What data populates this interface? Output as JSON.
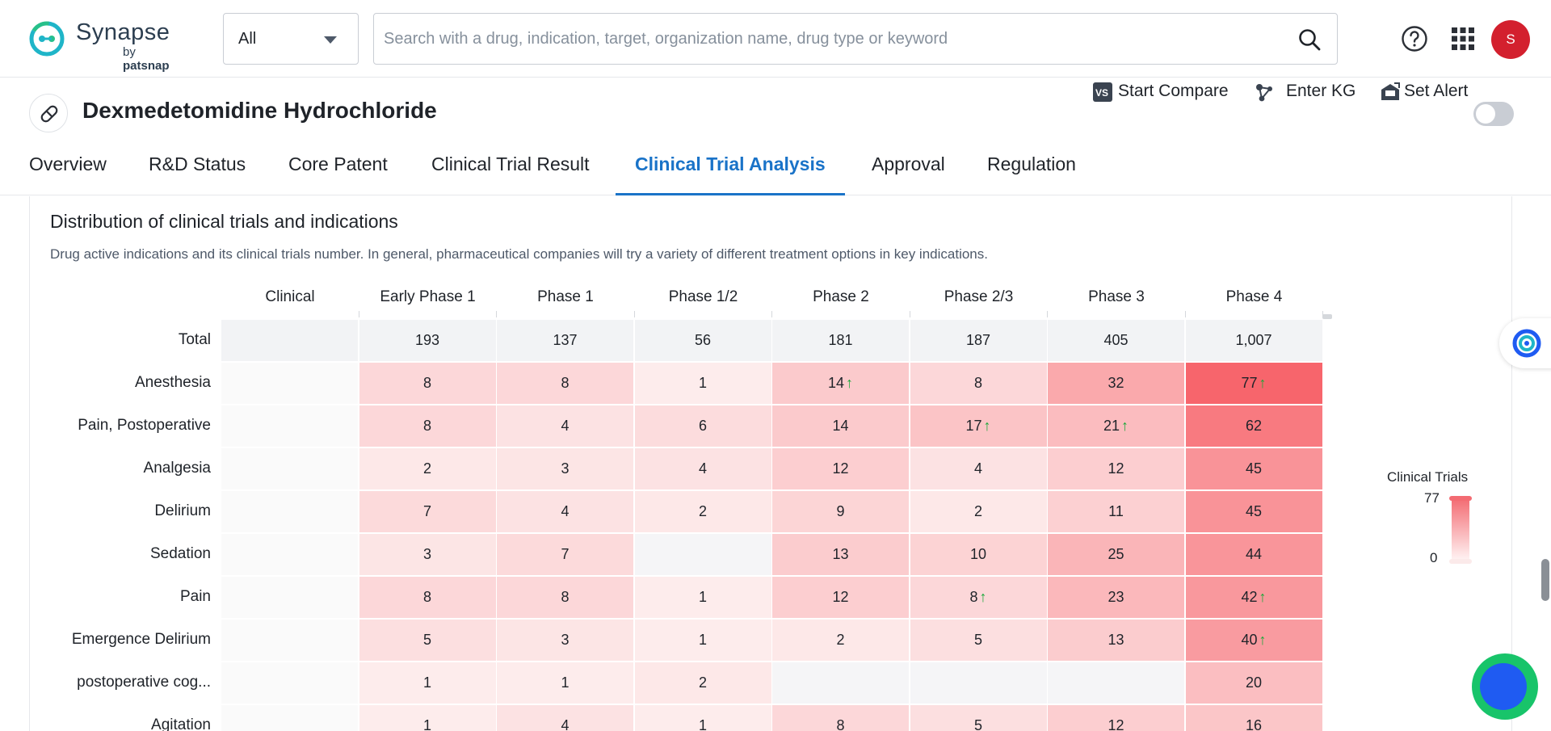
{
  "brand": {
    "name": "Synapse",
    "sub_prefix": "by ",
    "sub_name": "patsnap"
  },
  "search": {
    "scope": "All",
    "placeholder": "Search with a drug, indication, target, organization name, drug type or keyword"
  },
  "user": {
    "avatar_initial": "S"
  },
  "drug": {
    "title": "Dexmedetomidine Hydrochloride"
  },
  "actions": {
    "compare": "Start Compare",
    "kg": "Enter KG",
    "alert": "Set Alert",
    "alert_enabled": false
  },
  "tabs": [
    {
      "label": "Overview",
      "active": false
    },
    {
      "label": "R&D Status",
      "active": false
    },
    {
      "label": "Core Patent",
      "active": false
    },
    {
      "label": "Clinical Trial Result",
      "active": false
    },
    {
      "label": "Clinical Trial Analysis",
      "active": true
    },
    {
      "label": "Approval",
      "active": false
    },
    {
      "label": "Regulation",
      "active": false
    }
  ],
  "section": {
    "title": "Distribution of clinical trials and indications",
    "description": "Drug active indications and its clinical trials number. In general, pharmaceutical companies will try a variety of different treatment options in key indications."
  },
  "chart_data": {
    "type": "heatmap",
    "columns": [
      "Clinical",
      "Early Phase 1",
      "Phase 1",
      "Phase 1/2",
      "Phase 2",
      "Phase 2/3",
      "Phase 3",
      "Phase 4"
    ],
    "total": {
      "label": "Total",
      "values": [
        "",
        "193",
        "137",
        "56",
        "181",
        "187",
        "405",
        "1,007"
      ]
    },
    "rows": [
      {
        "label": "Anesthesia",
        "values": [
          null,
          8,
          8,
          1,
          14,
          8,
          32,
          77
        ],
        "trend_up": [
          false,
          false,
          false,
          false,
          true,
          false,
          false,
          true
        ]
      },
      {
        "label": "Pain, Postoperative",
        "values": [
          null,
          8,
          4,
          6,
          14,
          17,
          21,
          62
        ],
        "trend_up": [
          false,
          false,
          false,
          false,
          false,
          true,
          true,
          false
        ]
      },
      {
        "label": "Analgesia",
        "values": [
          null,
          2,
          3,
          4,
          12,
          4,
          12,
          45
        ],
        "trend_up": [
          false,
          false,
          false,
          false,
          false,
          false,
          false,
          false
        ]
      },
      {
        "label": "Delirium",
        "values": [
          null,
          7,
          4,
          2,
          9,
          2,
          11,
          45
        ],
        "trend_up": [
          false,
          false,
          false,
          false,
          false,
          false,
          false,
          false
        ]
      },
      {
        "label": "Sedation",
        "values": [
          null,
          3,
          7,
          null,
          13,
          10,
          25,
          44
        ],
        "trend_up": [
          false,
          false,
          false,
          false,
          false,
          false,
          false,
          false
        ]
      },
      {
        "label": "Pain",
        "values": [
          null,
          8,
          8,
          1,
          12,
          8,
          23,
          42
        ],
        "trend_up": [
          false,
          false,
          false,
          false,
          false,
          true,
          false,
          true
        ]
      },
      {
        "label": "Emergence Delirium",
        "values": [
          null,
          5,
          3,
          1,
          2,
          5,
          13,
          40
        ],
        "trend_up": [
          false,
          false,
          false,
          false,
          false,
          false,
          false,
          true
        ]
      },
      {
        "label": "postoperative cog...",
        "values": [
          null,
          1,
          1,
          2,
          null,
          null,
          null,
          20
        ],
        "trend_up": [
          false,
          false,
          false,
          false,
          false,
          false,
          false,
          false
        ]
      },
      {
        "label": "Agitation",
        "values": [
          null,
          1,
          4,
          1,
          8,
          5,
          12,
          16
        ],
        "trend_up": [
          false,
          false,
          false,
          false,
          false,
          false,
          false,
          false
        ]
      }
    ],
    "legend": {
      "title": "Clinical Trials",
      "min": "0",
      "max": "77"
    },
    "colors": {
      "high": "#f7656c",
      "low": "#fdf1f1",
      "empty": "#f5f5f7",
      "total": "#f2f3f5",
      "trend": "#1aa83a"
    }
  },
  "icons": {
    "search": "search-icon",
    "help": "help-icon",
    "apps": "apps-grid-icon",
    "drug": "pill-icon",
    "compare": "compare-icon",
    "kg": "knowledge-graph-icon",
    "alert": "bell-alert-icon",
    "assistant": "assistant-logo-icon",
    "chat": "chat-icon"
  }
}
